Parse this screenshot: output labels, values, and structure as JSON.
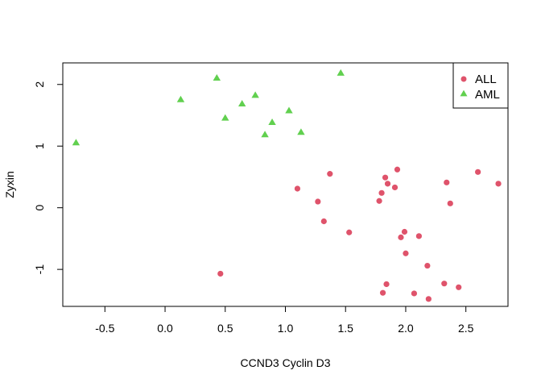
{
  "chart_data": {
    "type": "scatter",
    "title": "",
    "xlabel": "CCND3 Cyclin D3",
    "ylabel": "Zyxin",
    "xlim": [
      -0.85,
      2.85
    ],
    "ylim": [
      -1.6,
      2.35
    ],
    "xticks": [
      -0.5,
      0.0,
      0.5,
      1.0,
      1.5,
      2.0,
      2.5
    ],
    "xtick_labels": [
      "-0.5",
      "0.0",
      "0.5",
      "1.0",
      "1.5",
      "2.0",
      "2.5"
    ],
    "yticks": [
      -1,
      0,
      1,
      2
    ],
    "ytick_labels": [
      "-1",
      "0",
      "1",
      "2"
    ],
    "grid": false,
    "legend_position": "top-right",
    "series": [
      {
        "name": "ALL",
        "marker": "circle",
        "color": "#DF536B",
        "x": [
          0.46,
          1.1,
          1.27,
          1.32,
          1.37,
          1.53,
          1.78,
          1.8,
          1.81,
          1.83,
          1.84,
          1.85,
          1.91,
          1.93,
          1.96,
          1.99,
          2.0,
          2.07,
          2.11,
          2.18,
          2.19,
          2.32,
          2.34,
          2.37,
          2.44,
          2.6,
          2.77
        ],
        "y": [
          -1.07,
          0.31,
          0.1,
          -0.22,
          0.55,
          -0.4,
          0.11,
          0.24,
          -1.38,
          0.49,
          -1.24,
          0.39,
          0.33,
          0.62,
          -0.48,
          -0.39,
          -0.74,
          -1.39,
          -0.46,
          -0.94,
          -1.48,
          -1.23,
          0.41,
          0.07,
          -1.29,
          0.58,
          0.39
        ]
      },
      {
        "name": "AML",
        "marker": "triangle",
        "color": "#61D04F",
        "x": [
          -0.74,
          0.13,
          0.43,
          0.5,
          0.64,
          0.75,
          0.83,
          0.89,
          1.03,
          1.13,
          1.46
        ],
        "y": [
          1.06,
          1.76,
          2.11,
          1.46,
          1.69,
          1.83,
          1.19,
          1.39,
          1.58,
          1.23,
          2.19
        ]
      }
    ]
  }
}
